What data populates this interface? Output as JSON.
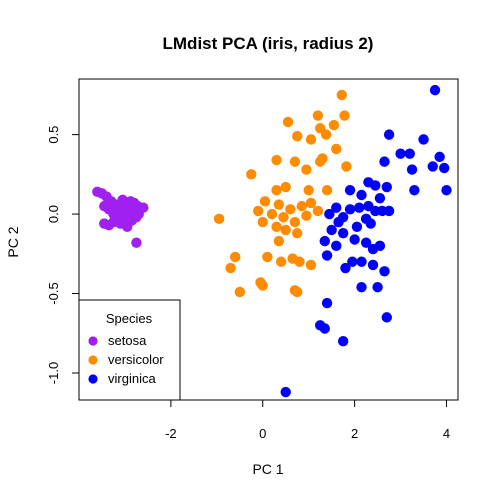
{
  "chart_data": {
    "type": "scatter",
    "title": "LMdist PCA (iris, radius 2)",
    "xlabel": "PC 1",
    "ylabel": "PC 2",
    "xlim": [
      -4.0,
      4.25
    ],
    "ylim": [
      -1.17,
      0.85
    ],
    "x_ticks": [
      {
        "value": -2,
        "label": "-2"
      },
      {
        "value": 0,
        "label": "0"
      },
      {
        "value": 2,
        "label": "2"
      },
      {
        "value": 4,
        "label": "4"
      }
    ],
    "y_ticks": [
      {
        "value": -1.0,
        "label": "-1.0"
      },
      {
        "value": -0.5,
        "label": "-0.5"
      },
      {
        "value": 0.0,
        "label": "0.0"
      },
      {
        "value": 0.5,
        "label": "0.5"
      }
    ],
    "legend": {
      "title": "Species",
      "position": "bottom-left",
      "entries": [
        "setosa",
        "versicolor",
        "virginica"
      ]
    },
    "colors": {
      "setosa": "#a020f0",
      "versicolor": "#ff8c00",
      "virginica": "#0000ff"
    },
    "series": [
      {
        "name": "setosa",
        "points": [
          [
            -3.6,
            0.14
          ],
          [
            -3.5,
            0.13
          ],
          [
            -3.45,
            0.05
          ],
          [
            -3.4,
            0.11
          ],
          [
            -3.35,
            0.03
          ],
          [
            -3.3,
            0.08
          ],
          [
            -3.25,
            0.0
          ],
          [
            -3.2,
            0.06
          ],
          [
            -3.15,
            -0.01
          ],
          [
            -3.1,
            0.04
          ],
          [
            -3.05,
            0.09
          ],
          [
            -3.0,
            0.02
          ],
          [
            -2.98,
            -0.03
          ],
          [
            -2.95,
            0.06
          ],
          [
            -2.9,
            0.0
          ],
          [
            -2.88,
            0.08
          ],
          [
            -2.85,
            -0.04
          ],
          [
            -2.82,
            0.03
          ],
          [
            -2.8,
            0.07
          ],
          [
            -2.78,
            0.01
          ],
          [
            -2.75,
            -0.02
          ],
          [
            -2.72,
            0.05
          ],
          [
            -2.7,
            0.0
          ],
          [
            -2.6,
            0.04
          ],
          [
            -3.25,
            -0.05
          ],
          [
            -3.1,
            -0.06
          ],
          [
            -2.95,
            -0.08
          ],
          [
            -3.35,
            -0.07
          ],
          [
            -2.75,
            -0.18
          ],
          [
            -3.45,
            -0.06
          ]
        ]
      },
      {
        "name": "versicolor",
        "points": [
          [
            1.72,
            0.75
          ],
          [
            1.55,
            0.56
          ],
          [
            1.2,
            0.62
          ],
          [
            1.25,
            0.54
          ],
          [
            1.38,
            0.5
          ],
          [
            1.78,
            0.62
          ],
          [
            1.05,
            0.47
          ],
          [
            0.55,
            0.58
          ],
          [
            0.75,
            0.49
          ],
          [
            1.6,
            0.41
          ],
          [
            1.25,
            0.33
          ],
          [
            1.3,
            0.35
          ],
          [
            0.7,
            0.33
          ],
          [
            0.95,
            0.28
          ],
          [
            0.3,
            0.34
          ],
          [
            1.82,
            0.3
          ],
          [
            -0.25,
            0.25
          ],
          [
            0.3,
            0.15
          ],
          [
            0.5,
            0.17
          ],
          [
            1.0,
            0.15
          ],
          [
            1.4,
            0.15
          ],
          [
            0.05,
            0.08
          ],
          [
            0.35,
            0.06
          ],
          [
            0.6,
            0.03
          ],
          [
            0.85,
            0.05
          ],
          [
            1.05,
            0.07
          ],
          [
            1.2,
            0.02
          ],
          [
            -0.1,
            0.02
          ],
          [
            0.2,
            0.0
          ],
          [
            0.45,
            -0.02
          ],
          [
            0.7,
            -0.05
          ],
          [
            0.95,
            -0.01
          ],
          [
            -0.95,
            -0.03
          ],
          [
            0.0,
            -0.05
          ],
          [
            0.3,
            -0.08
          ],
          [
            0.5,
            -0.1
          ],
          [
            0.75,
            -0.12
          ],
          [
            -0.6,
            -0.27
          ],
          [
            -0.7,
            -0.34
          ],
          [
            0.1,
            -0.27
          ],
          [
            0.35,
            -0.17
          ],
          [
            0.65,
            -0.28
          ],
          [
            0.4,
            -0.3
          ],
          [
            0.8,
            -0.3
          ],
          [
            -0.05,
            -0.43
          ],
          [
            0.0,
            -0.45
          ],
          [
            -0.5,
            -0.49
          ],
          [
            0.7,
            -0.48
          ],
          [
            0.75,
            -0.49
          ],
          [
            1.05,
            -0.32
          ]
        ]
      },
      {
        "name": "virginica",
        "points": [
          [
            3.75,
            0.78
          ],
          [
            2.75,
            0.5
          ],
          [
            3.5,
            0.47
          ],
          [
            3.0,
            0.38
          ],
          [
            3.2,
            0.38
          ],
          [
            3.85,
            0.36
          ],
          [
            3.7,
            0.3
          ],
          [
            3.95,
            0.29
          ],
          [
            2.65,
            0.33
          ],
          [
            3.25,
            0.28
          ],
          [
            4.0,
            0.15
          ],
          [
            3.3,
            0.15
          ],
          [
            2.3,
            0.2
          ],
          [
            2.45,
            0.18
          ],
          [
            2.7,
            0.17
          ],
          [
            1.9,
            0.15
          ],
          [
            2.15,
            0.12
          ],
          [
            2.55,
            0.1
          ],
          [
            2.3,
            0.05
          ],
          [
            1.6,
            0.04
          ],
          [
            1.9,
            0.03
          ],
          [
            2.1,
            0.04
          ],
          [
            2.45,
            0.02
          ],
          [
            2.6,
            0.02
          ],
          [
            2.75,
            0.02
          ],
          [
            1.45,
            0.0
          ],
          [
            1.75,
            -0.02
          ],
          [
            2.25,
            -0.03
          ],
          [
            1.65,
            -0.05
          ],
          [
            2.05,
            -0.08
          ],
          [
            2.35,
            -0.06
          ],
          [
            1.5,
            -0.1
          ],
          [
            1.75,
            -0.12
          ],
          [
            2.0,
            -0.16
          ],
          [
            2.25,
            -0.18
          ],
          [
            2.55,
            -0.2
          ],
          [
            2.4,
            -0.22
          ],
          [
            1.35,
            -0.17
          ],
          [
            1.6,
            -0.2
          ],
          [
            1.4,
            -0.26
          ],
          [
            1.95,
            -0.3
          ],
          [
            2.15,
            -0.3
          ],
          [
            1.8,
            -0.34
          ],
          [
            2.4,
            -0.32
          ],
          [
            2.65,
            -0.36
          ],
          [
            2.15,
            -0.46
          ],
          [
            2.5,
            -0.46
          ],
          [
            1.4,
            -0.56
          ],
          [
            2.7,
            -0.65
          ],
          [
            1.25,
            -0.7
          ],
          [
            1.35,
            -0.72
          ],
          [
            1.75,
            -0.8
          ],
          [
            0.5,
            -1.12
          ]
        ]
      }
    ]
  }
}
